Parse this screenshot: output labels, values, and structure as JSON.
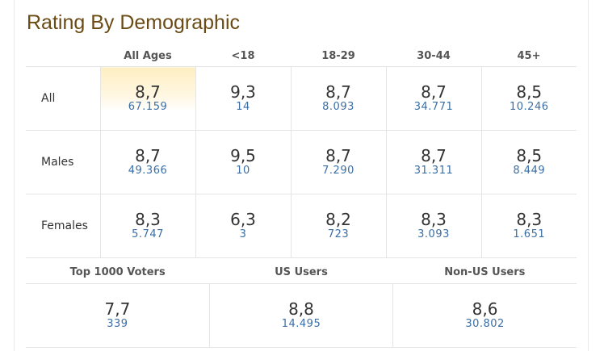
{
  "title": "Rating By Demographic",
  "columns": [
    "All Ages",
    "<18",
    "18-29",
    "30-44",
    "45+"
  ],
  "rows": [
    {
      "label": "All",
      "cells": [
        {
          "rating": "8,7",
          "votes": "67.159"
        },
        {
          "rating": "9,3",
          "votes": "14"
        },
        {
          "rating": "8,7",
          "votes": "8.093"
        },
        {
          "rating": "8,7",
          "votes": "34.771"
        },
        {
          "rating": "8,5",
          "votes": "10.246"
        }
      ]
    },
    {
      "label": "Males",
      "cells": [
        {
          "rating": "8,7",
          "votes": "49.366"
        },
        {
          "rating": "9,5",
          "votes": "10"
        },
        {
          "rating": "8,7",
          "votes": "7.290"
        },
        {
          "rating": "8,7",
          "votes": "31.311"
        },
        {
          "rating": "8,5",
          "votes": "8.449"
        }
      ]
    },
    {
      "label": "Females",
      "cells": [
        {
          "rating": "8,3",
          "votes": "5.747"
        },
        {
          "rating": "6,3",
          "votes": "3"
        },
        {
          "rating": "8,2",
          "votes": "723"
        },
        {
          "rating": "8,3",
          "votes": "3.093"
        },
        {
          "rating": "8,3",
          "votes": "1.651"
        }
      ]
    }
  ],
  "extra": [
    {
      "label": "Top 1000 Voters",
      "rating": "7,7",
      "votes": "339"
    },
    {
      "label": "US Users",
      "rating": "8,8",
      "votes": "14.495"
    },
    {
      "label": "Non-US Users",
      "rating": "8,6",
      "votes": "30.802"
    }
  ],
  "colors": {
    "title": "#6b4b14",
    "votes": "#3a6ea5",
    "highlight": "#fdeec2"
  }
}
